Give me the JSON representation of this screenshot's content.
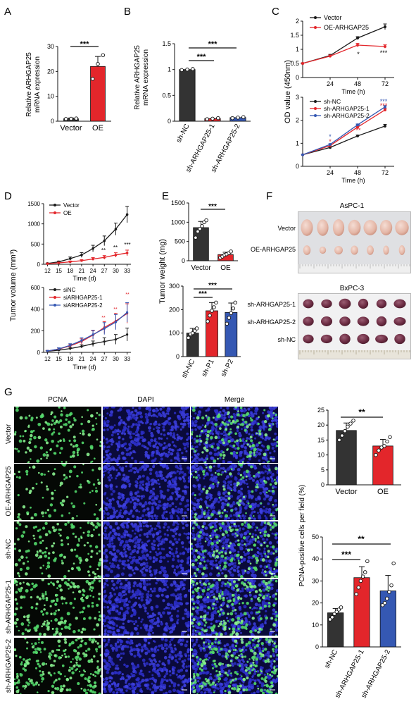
{
  "panel_letters": {
    "a": "A",
    "b": "B",
    "c": "C",
    "d": "D",
    "e": "E",
    "f": "F",
    "g": "G"
  },
  "sig": {
    "one": "*",
    "two": "**",
    "three": "***"
  },
  "colors": {
    "black": "#1a1a1a",
    "red": "#e3262b",
    "blue": "#3558b3",
    "dark_bar": "#333333",
    "pcna_green": "#52d86a",
    "dapi_blue": "#2b2ec8"
  },
  "panelA": {
    "ylabel1": "Relative ARHGAP25",
    "ylabel2": "mRNA expression",
    "chart_data": {
      "type": "bar",
      "categories": [
        "Vector",
        "OE"
      ],
      "values": [
        1,
        22
      ],
      "errors": [
        0.3,
        4
      ],
      "ylim": [
        0,
        30
      ],
      "yticks": [
        0,
        10,
        20,
        30
      ],
      "points": [
        [
          0.9,
          1.0,
          1.1
        ],
        [
          17,
          23,
          26.5
        ]
      ],
      "bar_colors": [
        "#333333",
        "#e3262b"
      ]
    }
  },
  "panelB": {
    "ylabel1": "Relative ARHGAP25",
    "ylabel2": "mRNA expression",
    "chart_data": {
      "type": "bar",
      "categories": [
        "sh-NC",
        "sh-ARHGAP25-1",
        "sh-ARHGAP25-2"
      ],
      "values": [
        1.0,
        0.05,
        0.07
      ],
      "ylim": [
        0,
        1.5
      ],
      "yticks": [
        0.0,
        0.5,
        1.0,
        1.5
      ],
      "points": [
        [
          0.99,
          1.0,
          1.01
        ],
        [
          0.04,
          0.05,
          0.06
        ],
        [
          0.06,
          0.07,
          0.08
        ]
      ],
      "bar_colors": [
        "#333333",
        "#e3262b",
        "#3558b3"
      ]
    }
  },
  "panelC": {
    "ylabel": "OD value (450nm)",
    "xlabel": "Time (h)",
    "top": {
      "chart_data": {
        "type": "line",
        "x": [
          0,
          24,
          48,
          72
        ],
        "xticks": [
          24,
          48,
          72
        ],
        "ylim": [
          0,
          2.0
        ],
        "yticks": [
          0.0,
          0.5,
          1.0,
          1.5,
          2.0
        ],
        "series": [
          {
            "name": "Vector",
            "color": "#1a1a1a",
            "values": [
              0.5,
              0.78,
              1.4,
              1.8
            ],
            "errors": [
              0.02,
              0.04,
              0.05,
              0.1
            ]
          },
          {
            "name": "OE-ARHGAP25",
            "color": "#e3262b",
            "values": [
              0.5,
              0.76,
              1.15,
              1.1
            ],
            "errors": [
              0.02,
              0.04,
              0.06,
              0.06
            ]
          }
        ]
      }
    },
    "bottom": {
      "chart_data": {
        "type": "line",
        "x": [
          0,
          24,
          48,
          72
        ],
        "xticks": [
          24,
          48,
          72
        ],
        "ylim": [
          0,
          3
        ],
        "yticks": [
          0,
          1,
          2,
          3
        ],
        "series": [
          {
            "name": "sh-NC",
            "color": "#1a1a1a",
            "values": [
              0.5,
              0.82,
              1.32,
              1.75
            ],
            "errors": [
              0.02,
              0.03,
              0.04,
              0.07
            ]
          },
          {
            "name": "sh-ARHGAP25-1",
            "color": "#e3262b",
            "values": [
              0.5,
              0.9,
              1.7,
              2.45
            ],
            "errors": [
              0.02,
              0.03,
              0.04,
              0.06
            ]
          },
          {
            "name": "sh-ARHGAP25-2",
            "color": "#3558b3",
            "values": [
              0.5,
              0.95,
              1.8,
              2.58
            ],
            "errors": [
              0.02,
              0.03,
              0.04,
              0.06
            ]
          }
        ]
      }
    }
  },
  "panelD": {
    "ylabel": "Tumor volume  (mm³)",
    "xlabel": "Time (d)",
    "top": {
      "chart_data": {
        "type": "line",
        "x": [
          12,
          15,
          18,
          21,
          24,
          27,
          30,
          33
        ],
        "xticks": [
          12,
          15,
          18,
          21,
          24,
          27,
          30,
          33
        ],
        "ylim": [
          0,
          1500
        ],
        "yticks": [
          0,
          500,
          1000,
          1500
        ],
        "series": [
          {
            "name": "Vector",
            "color": "#1a1a1a",
            "values": [
              20,
              60,
              140,
              230,
              390,
              580,
              870,
              1230
            ],
            "errors": [
              10,
              20,
              40,
              60,
              80,
              120,
              150,
              200
            ]
          },
          {
            "name": "OE",
            "color": "#e3262b",
            "values": [
              15,
              35,
              60,
              90,
              130,
              170,
              230,
              280
            ],
            "errors": [
              8,
              12,
              20,
              25,
              35,
              45,
              55,
              70
            ]
          }
        ]
      }
    },
    "bottom": {
      "chart_data": {
        "type": "line",
        "x": [
          12,
          15,
          18,
          21,
          24,
          27,
          30,
          33
        ],
        "xticks": [
          12,
          15,
          18,
          21,
          24,
          27,
          30,
          33
        ],
        "ylim": [
          0,
          600
        ],
        "yticks": [
          0,
          200,
          400,
          600
        ],
        "series": [
          {
            "name": "siNC",
            "color": "#1a1a1a",
            "values": [
              10,
              20,
              35,
              55,
              80,
              100,
              120,
              165
            ],
            "errors": [
              5,
              8,
              12,
              15,
              25,
              35,
              45,
              60
            ]
          },
          {
            "name": "siARHGAP25-1",
            "color": "#e3262b",
            "values": [
              12,
              30,
              60,
              100,
              160,
              230,
              290,
              360
            ],
            "errors": [
              6,
              10,
              15,
              25,
              40,
              55,
              70,
              90
            ]
          },
          {
            "name": "siARHGAP25-2",
            "color": "#3558b3",
            "values": [
              12,
              32,
              65,
              110,
              165,
              220,
              280,
              370
            ],
            "errors": [
              6,
              10,
              15,
              25,
              40,
              55,
              70,
              90
            ]
          }
        ]
      }
    }
  },
  "panelE": {
    "ylabel": "Tumor weight (mg)",
    "top": {
      "chart_data": {
        "type": "bar",
        "categories": [
          "Vector",
          "OE"
        ],
        "values": [
          860,
          160
        ],
        "errors": [
          160,
          60
        ],
        "ylim": [
          0,
          1500
        ],
        "yticks": [
          0,
          500,
          1000,
          1500
        ],
        "points": [
          [
            600,
            760,
            830,
            900,
            1000,
            1050
          ],
          [
            80,
            110,
            150,
            170,
            200,
            240
          ]
        ],
        "bar_colors": [
          "#333333",
          "#e3262b"
        ]
      }
    },
    "bottom": {
      "chart_data": {
        "type": "bar",
        "categories": [
          "sh-NC",
          "sh-P1",
          "sh-P2"
        ],
        "values": [
          100,
          195,
          188
        ],
        "errors": [
          20,
          35,
          40
        ],
        "ylim": [
          0,
          300
        ],
        "yticks": [
          0,
          100,
          200,
          300
        ],
        "points": [
          [
            80,
            95,
            100,
            110,
            120
          ],
          [
            150,
            175,
            195,
            210,
            230
          ],
          [
            140,
            165,
            185,
            205,
            230
          ]
        ],
        "bar_colors": [
          "#333333",
          "#e3262b",
          "#3558b3"
        ]
      }
    }
  },
  "panelF": {
    "top_title": "AsPC-1",
    "top_rows": [
      "Vector",
      "OE-ARHGAP25"
    ],
    "bottom_title": "BxPC-3",
    "bottom_rows": [
      "sh-ARHGAP25-1",
      "sh-ARHGAP25-2",
      "sh-NC"
    ]
  },
  "panelG": {
    "columns": [
      "PCNA",
      "DAPI",
      "Merge"
    ],
    "rows": [
      "Vector",
      "OE-ARHGAP25",
      "sh-NC",
      "sh-ARHGAP25-1",
      "sh-ARHGAP25-2"
    ],
    "ylabel": "PCNA-positive cells per field  (%)",
    "top": {
      "chart_data": {
        "type": "bar",
        "categories": [
          "Vector",
          "OE"
        ],
        "values": [
          18.2,
          13.0
        ],
        "errors": [
          2.5,
          2.2
        ],
        "ylim": [
          0,
          25
        ],
        "yticks": [
          0,
          5,
          10,
          15,
          20,
          25
        ],
        "points": [
          [
            15,
            16.5,
            18,
            19.5,
            20.5,
            21.5
          ],
          [
            10,
            11.5,
            12.5,
            13,
            14.5,
            16
          ]
        ],
        "bar_colors": [
          "#333333",
          "#e3262b"
        ]
      }
    },
    "bottom": {
      "chart_data": {
        "type": "bar",
        "categories": [
          "sh-NC",
          "sh-ARHGAP25-1",
          "sh-ARHGAP25-2"
        ],
        "values": [
          15.5,
          31.5,
          25.5
        ],
        "errors": [
          2,
          5,
          7
        ],
        "ylim": [
          0,
          50
        ],
        "yticks": [
          0,
          10,
          20,
          30,
          40,
          50
        ],
        "points": [
          [
            12.5,
            13.5,
            15,
            16,
            17,
            18
          ],
          [
            24,
            27,
            30,
            32,
            34,
            39
          ],
          [
            19,
            20,
            22,
            25,
            28,
            38
          ]
        ],
        "bar_colors": [
          "#333333",
          "#e3262b",
          "#3558b3"
        ]
      }
    }
  }
}
